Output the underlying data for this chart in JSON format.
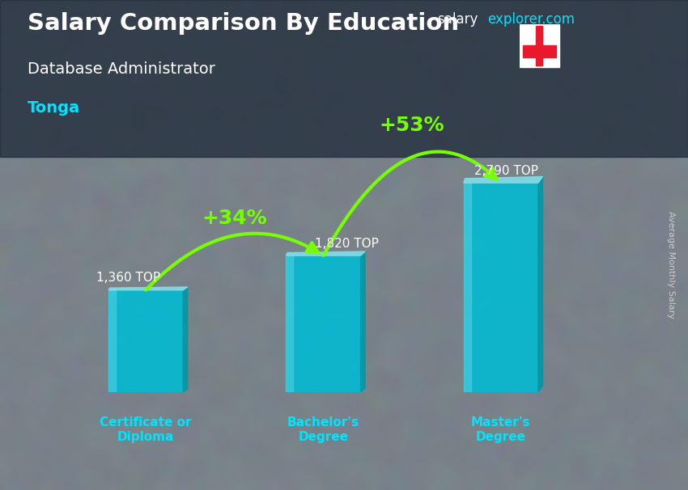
{
  "title_main": "Salary Comparison By Education",
  "subtitle_job": "Database Administrator",
  "subtitle_location": "Tonga",
  "ylabel": "Average Monthly Salary",
  "website_gray": "salary",
  "website_cyan": "explorer.com",
  "categories": [
    "Certificate or\nDiploma",
    "Bachelor's\nDegree",
    "Master's\nDegree"
  ],
  "values": [
    1360,
    1820,
    2790
  ],
  "labels": [
    "1,360 TOP",
    "1,820 TOP",
    "2,790 TOP"
  ],
  "arrow_texts": [
    "+34%",
    "+53%"
  ],
  "bar_face_color": "#00bcd4",
  "bar_light_color": "#4dd0e1",
  "bar_dark_color": "#0097a7",
  "bar_top_color": "#80deea",
  "arrow_color": "#76ff03",
  "bg_color": "#607d8b",
  "overlay_color": "#455a64",
  "title_color": "#ffffff",
  "label_color": "#ffffff",
  "category_color": "#00e5ff",
  "tonga_flag_red": "#e8192c",
  "tonga_flag_white": "#ffffff",
  "ylabel_color": "#cccccc",
  "ylim_max": 3400
}
